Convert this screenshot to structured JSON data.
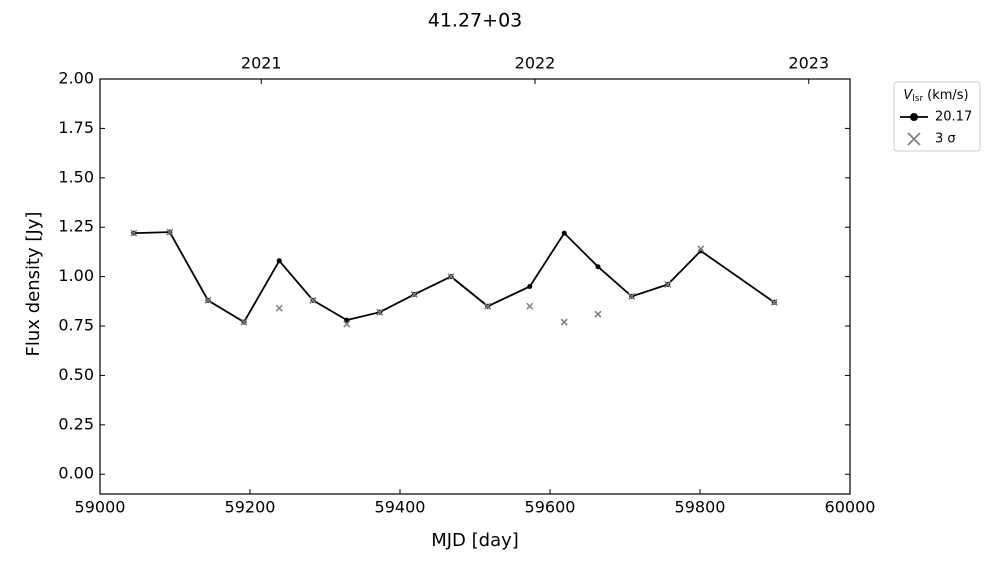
{
  "chart_data": {
    "type": "line",
    "title": "41.27+03",
    "xlabel": "MJD [day]",
    "ylabel": "Flux density [Jy]",
    "xlim": [
      59000,
      60000
    ],
    "xticks": [
      59000,
      59200,
      59400,
      59600,
      59800,
      60000
    ],
    "ylim": [
      -0.1,
      2.0
    ],
    "yticks": [
      {
        "value": 0,
        "label": "0.00"
      },
      {
        "value": 0.25,
        "label": "0.25"
      },
      {
        "value": 0.5,
        "label": "0.50"
      },
      {
        "value": 0.75,
        "label": "0.75"
      },
      {
        "value": 1.0,
        "label": "1.00"
      },
      {
        "value": 1.25,
        "label": "1.25"
      },
      {
        "value": 1.5,
        "label": "1.50"
      },
      {
        "value": 1.75,
        "label": "1.75"
      },
      {
        "value": 2.0,
        "label": "2.00"
      }
    ],
    "x2ticks": [
      {
        "value": 59215,
        "label": "2021"
      },
      {
        "value": 59580,
        "label": "2022"
      },
      {
        "value": 59945,
        "label": "2023"
      }
    ],
    "legend_title": {
      "symbol": "V",
      "subscript": "lsr",
      "unit": "(km/s)"
    },
    "legend_position": "outside upper right",
    "x": [
      59045,
      59093,
      59144,
      59192,
      59239,
      59284,
      59329,
      59373,
      59419,
      59468,
      59517,
      59573,
      59619,
      59664,
      59709,
      59757,
      59801,
      59899
    ],
    "series": [
      {
        "name": "20.17",
        "color": "#000000",
        "marker": "o",
        "values": [
          1.22,
          1.225,
          0.88,
          0.77,
          1.08,
          0.88,
          0.78,
          0.82,
          0.91,
          1.0,
          0.85,
          0.95,
          1.22,
          1.05,
          0.9,
          0.96,
          1.13,
          0.87
        ]
      },
      {
        "name": "3 σ",
        "color": "#808080",
        "marker": "x",
        "values": [
          1.22,
          1.225,
          0.88,
          0.77,
          0.84,
          0.88,
          0.76,
          0.82,
          0.91,
          1.0,
          0.85,
          0.85,
          0.77,
          0.81,
          0.9,
          0.96,
          1.14,
          0.87
        ]
      }
    ]
  }
}
